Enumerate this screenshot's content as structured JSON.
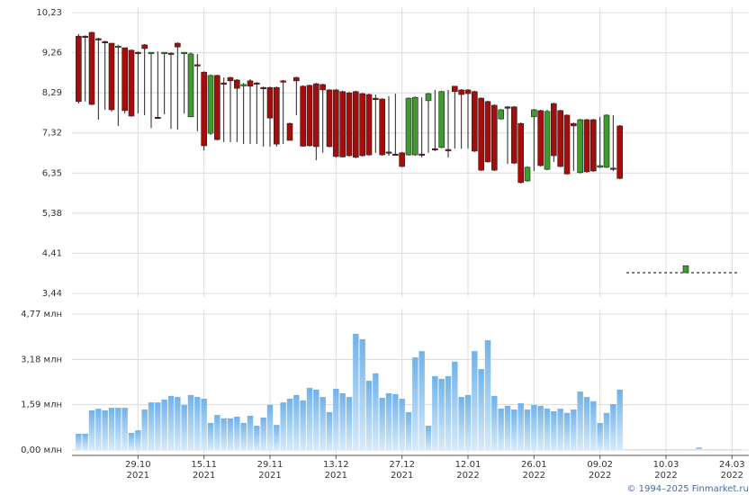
{
  "chart_data": [
    {
      "type": "candlestick",
      "x": [
        1,
        2,
        3,
        4,
        5,
        6,
        7,
        8,
        9,
        10,
        11,
        12,
        13,
        14,
        15,
        16,
        17,
        18,
        19,
        20,
        21,
        22,
        23,
        24,
        25,
        26,
        27,
        28,
        29,
        30,
        31,
        32,
        33,
        34,
        35,
        36,
        37,
        38,
        39,
        40,
        41,
        42,
        43,
        44,
        45,
        46,
        47,
        48,
        49,
        50,
        51,
        52,
        53,
        54,
        55,
        56,
        57,
        58,
        59,
        60,
        61,
        62,
        63,
        64,
        65,
        66,
        67,
        68,
        69,
        70,
        71,
        72,
        73,
        74,
        75,
        76,
        77,
        78,
        79,
        80,
        81,
        82,
        83,
        93
      ],
      "open": [
        9.66,
        9.66,
        9.75,
        9.6,
        9.53,
        9.49,
        9.4,
        9.38,
        9.32,
        9.27,
        9.45,
        9.25,
        7.7,
        9.25,
        9.25,
        9.49,
        9.25,
        7.71,
        8.97,
        8.79,
        7.31,
        8.71,
        8.53,
        8.66,
        8.6,
        8.47,
        8.58,
        8.53,
        8.42,
        8.42,
        8.42,
        8.58,
        7.55,
        8.66,
        8.45,
        8.47,
        8.51,
        8.49,
        8.36,
        8.36,
        8.32,
        8.29,
        8.32,
        8.27,
        8.25,
        8.16,
        8.14,
        6.86,
        6.81,
        6.84,
        6.79,
        6.79,
        6.81,
        8.1,
        6.94,
        6.97,
        6.92,
        8.45,
        8.36,
        8.36,
        8.32,
        8.16,
        8.08,
        7.99,
        7.66,
        7.95,
        7.95,
        7.55,
        6.16,
        7.71,
        7.86,
        6.44,
        8.03,
        7.86,
        7.75,
        7.55,
        6.36,
        7.64,
        7.64,
        6.49,
        6.49,
        6.47,
        7.49,
        3.94
      ],
      "high": [
        9.71,
        9.68,
        9.77,
        9.62,
        9.55,
        9.49,
        9.45,
        9.38,
        9.34,
        9.29,
        9.47,
        9.27,
        9.29,
        9.27,
        9.27,
        9.51,
        9.27,
        9.27,
        9.23,
        8.81,
        8.73,
        8.73,
        8.66,
        8.68,
        8.62,
        8.53,
        8.62,
        8.55,
        8.44,
        8.44,
        8.44,
        8.6,
        7.57,
        8.68,
        8.47,
        8.49,
        8.53,
        8.51,
        8.38,
        8.38,
        8.34,
        8.31,
        8.34,
        8.29,
        8.27,
        8.25,
        8.16,
        8.21,
        8.27,
        6.86,
        8.18,
        8.2,
        8.18,
        8.29,
        8.36,
        8.34,
        8.36,
        8.45,
        8.38,
        8.38,
        8.34,
        8.18,
        8.1,
        8.01,
        7.9,
        7.97,
        7.97,
        7.57,
        6.51,
        7.9,
        7.88,
        7.88,
        8.05,
        7.88,
        7.77,
        7.57,
        7.66,
        7.66,
        7.66,
        7.71,
        7.77,
        7.75,
        7.51,
        4.11
      ],
      "low": [
        8.03,
        8.08,
        7.99,
        7.64,
        7.88,
        7.84,
        7.49,
        7.79,
        7.71,
        7.79,
        7.75,
        7.44,
        7.66,
        7.77,
        7.42,
        7.4,
        7.79,
        7.71,
        7.36,
        6.9,
        7.27,
        7.14,
        7.1,
        7.1,
        7.1,
        7.05,
        7.05,
        7.05,
        6.99,
        6.99,
        6.99,
        7.05,
        7.14,
        7.75,
        6.99,
        6.99,
        6.66,
        6.84,
        6.97,
        6.73,
        6.73,
        6.75,
        6.71,
        6.75,
        6.77,
        6.84,
        6.77,
        6.77,
        6.77,
        6.49,
        6.77,
        6.77,
        6.73,
        6.84,
        6.88,
        6.95,
        6.73,
        6.94,
        6.94,
        6.94,
        6.86,
        6.4,
        6.6,
        6.4,
        7.64,
        6.57,
        6.57,
        6.1,
        6.14,
        6.4,
        6.51,
        6.42,
        6.62,
        6.49,
        6.31,
        6.4,
        6.34,
        6.36,
        6.38,
        6.47,
        6.47,
        6.4,
        6.2,
        3.94
      ],
      "close": [
        8.08,
        9.64,
        8.01,
        9.58,
        9.51,
        7.88,
        9.42,
        7.86,
        7.73,
        9.25,
        9.36,
        9.27,
        7.68,
        9.27,
        9.25,
        9.4,
        9.27,
        9.23,
        8.97,
        7.01,
        8.71,
        7.16,
        8.51,
        8.58,
        8.4,
        8.49,
        8.45,
        8.53,
        8.42,
        7.68,
        7.05,
        8.56,
        7.14,
        8.58,
        7.0,
        7.01,
        6.99,
        8.36,
        6.99,
        6.75,
        6.74,
        6.77,
        6.73,
        6.77,
        6.79,
        8.14,
        6.79,
        6.84,
        6.79,
        6.51,
        8.16,
        8.18,
        6.79,
        8.27,
        6.92,
        8.32,
        6.9,
        8.32,
        8.25,
        8.27,
        6.88,
        6.42,
        6.62,
        6.42,
        7.88,
        7.93,
        6.59,
        6.12,
        6.49,
        7.88,
        6.53,
        7.84,
        6.77,
        6.51,
        6.33,
        7.49,
        7.64,
        6.38,
        6.4,
        6.53,
        7.75,
        6.45,
        6.22,
        4.11
      ],
      "up_color": "#3f9b2f",
      "down_color": "#a50d0d",
      "halt": {
        "x": [
          84,
          101
        ],
        "value": 3.94
      },
      "xlim": [
        0,
        102
      ],
      "ylim": [
        3.44,
        10.23
      ],
      "yticks": [
        {
          "value": 10.23,
          "label": "10,23"
        },
        {
          "value": 9.26,
          "label": "9,26"
        },
        {
          "value": 8.29,
          "label": "8,29"
        },
        {
          "value": 7.32,
          "label": "7,32"
        },
        {
          "value": 6.35,
          "label": "6,35"
        },
        {
          "value": 5.38,
          "label": "5,38"
        },
        {
          "value": 4.41,
          "label": "4,41"
        },
        {
          "value": 3.44,
          "label": "3,44"
        }
      ],
      "grid": true
    },
    {
      "type": "bar",
      "x": [
        1,
        2,
        3,
        4,
        5,
        6,
        7,
        8,
        9,
        10,
        11,
        12,
        13,
        14,
        15,
        16,
        17,
        18,
        19,
        20,
        21,
        22,
        23,
        24,
        25,
        26,
        27,
        28,
        29,
        30,
        31,
        32,
        33,
        34,
        35,
        36,
        37,
        38,
        39,
        40,
        41,
        42,
        43,
        44,
        45,
        46,
        47,
        48,
        49,
        50,
        51,
        52,
        53,
        54,
        55,
        56,
        57,
        58,
        59,
        60,
        61,
        62,
        63,
        64,
        65,
        66,
        67,
        68,
        69,
        70,
        71,
        72,
        73,
        74,
        75,
        76,
        77,
        78,
        79,
        80,
        81,
        82,
        83,
        84,
        85,
        86,
        87,
        88,
        89,
        90,
        91,
        92,
        93,
        94,
        95,
        96,
        97,
        98,
        99,
        100,
        101
      ],
      "values": [
        0.57,
        0.57,
        1.39,
        1.45,
        1.39,
        1.48,
        1.48,
        1.48,
        0.6,
        0.69,
        1.42,
        1.67,
        1.67,
        1.77,
        1.9,
        1.86,
        1.58,
        1.93,
        1.86,
        1.8,
        0.95,
        1.23,
        1.11,
        1.11,
        1.17,
        0.95,
        1.2,
        0.85,
        1.14,
        1.58,
        0.88,
        1.67,
        1.8,
        1.93,
        1.74,
        2.18,
        2.12,
        1.86,
        1.33,
        2.15,
        1.99,
        1.86,
        4.08,
        3.89,
        2.43,
        2.69,
        1.83,
        1.99,
        1.96,
        1.8,
        1.33,
        3.25,
        3.47,
        0.85,
        2.59,
        2.5,
        2.59,
        3.1,
        1.86,
        1.93,
        3.47,
        2.84,
        3.85,
        1.9,
        1.45,
        1.55,
        1.42,
        1.64,
        1.42,
        1.58,
        1.55,
        1.45,
        1.36,
        1.45,
        1.3,
        1.42,
        2.05,
        1.86,
        1.71,
        0.95,
        1.3,
        1.61,
        2.12,
        0.02,
        0.02,
        0.02,
        0.02,
        0.02,
        0.02,
        0.02,
        0.02,
        0.02,
        0.02,
        0.02,
        0.09,
        0.02,
        0.02,
        0.02,
        0.02,
        0.02,
        0.02
      ],
      "gradient": [
        "#70b2ea",
        "#d6eafa"
      ],
      "xlim": [
        0,
        102
      ],
      "ylim": [
        0,
        4.77
      ],
      "yticks": [
        {
          "value": 4.77,
          "label": "4,77 млн"
        },
        {
          "value": 3.18,
          "label": "3,18 млн"
        },
        {
          "value": 1.59,
          "label": "1,59 млн"
        },
        {
          "value": 0,
          "label": "0,00 млн"
        }
      ],
      "xticks": [
        {
          "value": 10,
          "label": "29.10"
        },
        {
          "value": 20,
          "label": "15.11"
        },
        {
          "value": 30,
          "label": "29.11"
        },
        {
          "value": 40,
          "label": "13.12"
        },
        {
          "value": 50,
          "label": "27.12"
        },
        {
          "value": 60,
          "label": "12.01"
        },
        {
          "value": 70,
          "label": "26.01"
        },
        {
          "value": 80,
          "label": "09.02"
        },
        {
          "value": 90,
          "label": "10.03"
        },
        {
          "value": 100,
          "label": "24.03"
        }
      ],
      "xtick_years": [
        "2021",
        "2021",
        "2021",
        "2021",
        "2021",
        "2022",
        "2022",
        "2022",
        "2022",
        "2022"
      ],
      "grid": true
    }
  ],
  "footer": "© 1994–2025 Finmarket.ru"
}
